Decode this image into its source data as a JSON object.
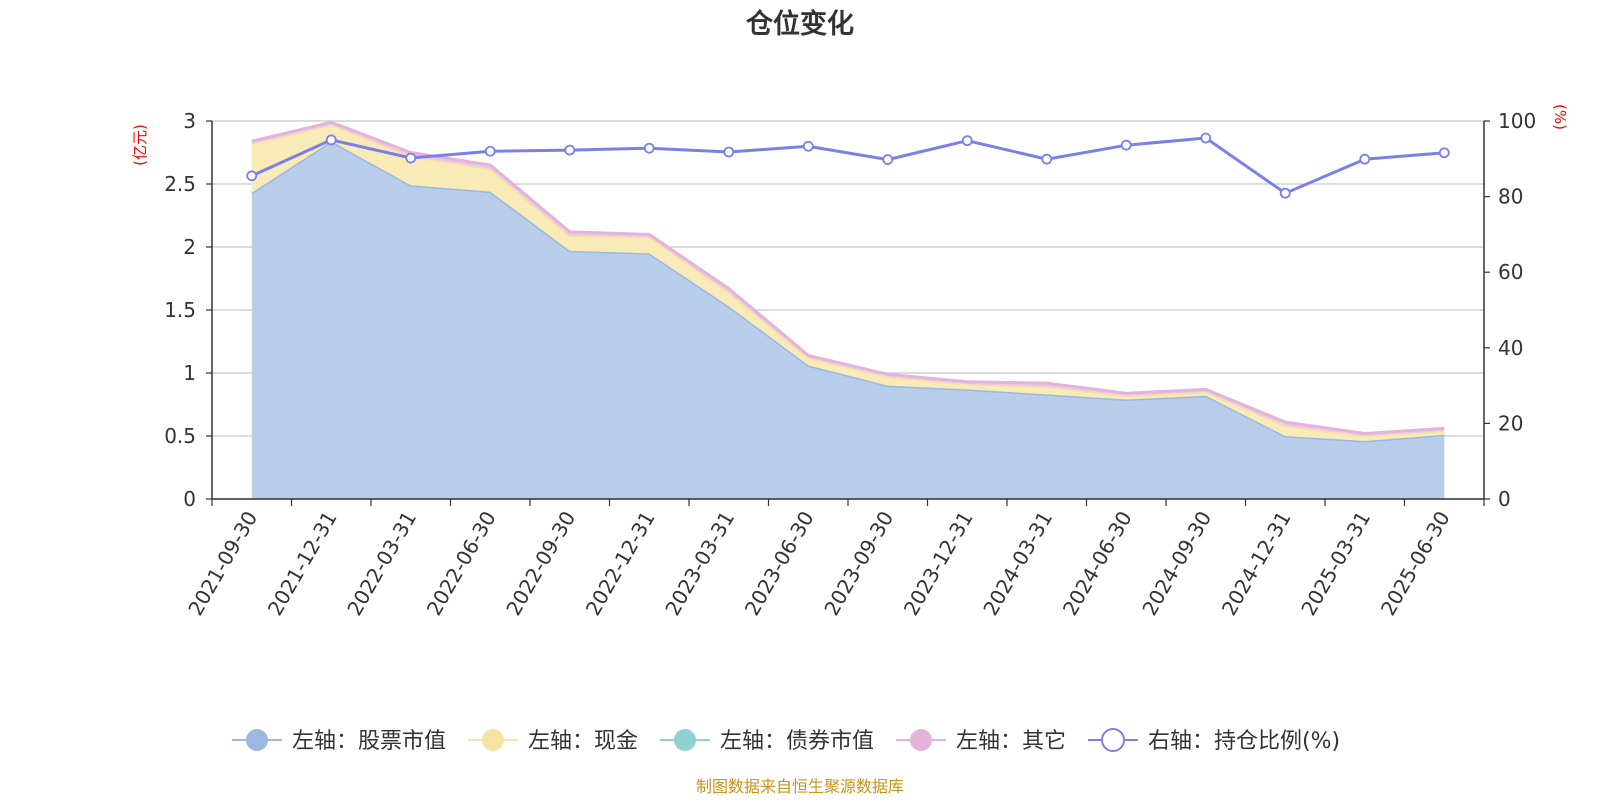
{
  "chart_data": {
    "type": "area",
    "title": "仓位变化",
    "x": [
      "2021-09-30",
      "2021-12-31",
      "2022-03-31",
      "2022-06-30",
      "2022-09-30",
      "2022-12-31",
      "2023-03-31",
      "2023-06-30",
      "2023-09-30",
      "2023-12-31",
      "2024-03-31",
      "2024-06-30",
      "2024-09-30",
      "2024-12-31",
      "2025-03-31",
      "2025-06-30"
    ],
    "left_axis": {
      "unit": "(亿元)",
      "ylim": [
        0,
        3
      ],
      "ticks": [
        "0",
        "0.5",
        "1",
        "1.5",
        "2",
        "2.5",
        "3"
      ]
    },
    "right_axis": {
      "unit": "(%)",
      "ylim": [
        0,
        100
      ],
      "ticks": [
        "0",
        "20",
        "40",
        "60",
        "80",
        "100"
      ]
    },
    "series": [
      {
        "name": "左轴：股票市值",
        "axis": "left",
        "kind": "area",
        "color": "#9bb8e0",
        "fill": "#b8cdea",
        "values": [
          2.43,
          2.84,
          2.49,
          2.44,
          1.97,
          1.95,
          1.53,
          1.06,
          0.9,
          0.87,
          0.83,
          0.79,
          0.82,
          0.5,
          0.46,
          0.51
        ]
      },
      {
        "name": "左轴：现金",
        "axis": "left",
        "kind": "area",
        "color": "#f5e3a6",
        "fill": "#f9ebb8",
        "values": [
          0.39,
          0.13,
          0.23,
          0.18,
          0.12,
          0.13,
          0.11,
          0.06,
          0.07,
          0.04,
          0.06,
          0.03,
          0.03,
          0.08,
          0.04,
          0.03
        ]
      },
      {
        "name": "左轴：债券市值",
        "axis": "left",
        "kind": "area",
        "color": "#8fd0d0",
        "fill": "#b2e0e0",
        "values": [
          0,
          0,
          0,
          0,
          0,
          0,
          0,
          0,
          0,
          0,
          0,
          0,
          0,
          0,
          0,
          0
        ]
      },
      {
        "name": "左轴：其它",
        "axis": "left",
        "kind": "area",
        "color": "#e3b3db",
        "fill": "#ecc8e6",
        "values": [
          0.02,
          0.02,
          0.03,
          0.03,
          0.03,
          0.02,
          0.03,
          0.02,
          0.02,
          0.02,
          0.03,
          0.02,
          0.02,
          0.03,
          0.02,
          0.02
        ]
      },
      {
        "name": "右轴：持仓比例(%)",
        "axis": "right",
        "kind": "line",
        "color": "#7a7fea",
        "values": [
          85.5,
          95.0,
          90.2,
          92.0,
          92.3,
          92.8,
          91.8,
          93.3,
          89.8,
          94.8,
          89.9,
          93.6,
          95.5,
          80.9,
          89.9,
          91.6
        ]
      }
    ],
    "grid": true,
    "legend_position": "bottom"
  },
  "footer": {
    "source": "制图数据来自恒生聚源数据库"
  }
}
